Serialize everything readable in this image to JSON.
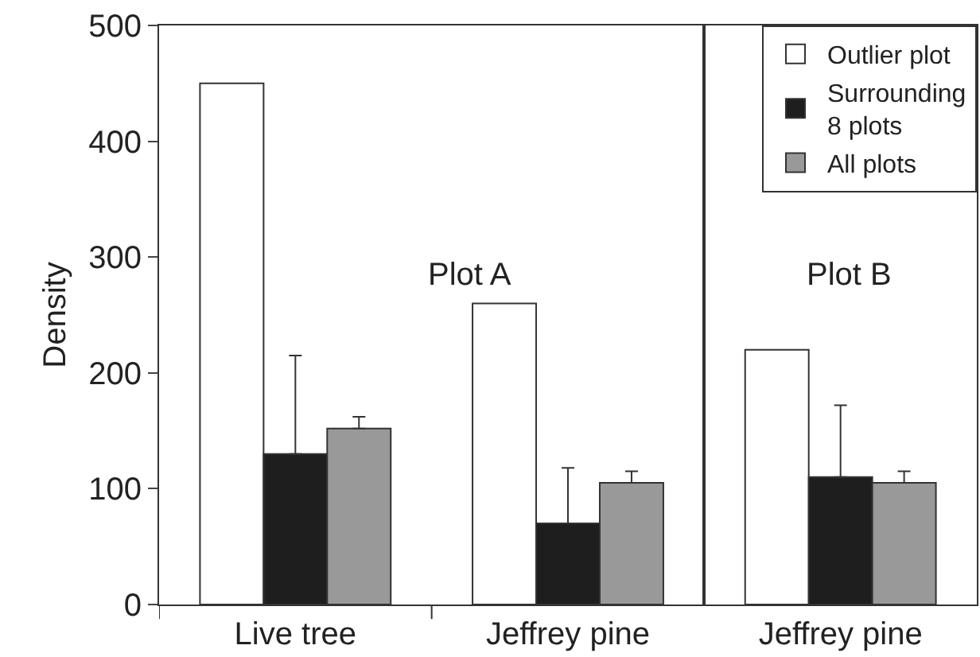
{
  "chart_data": [
    {
      "type": "bar",
      "ylabel": "Density",
      "categories": [
        "Live tree",
        "Jeffrey pine"
      ],
      "ylim": [
        0,
        500
      ],
      "yticks": [
        0,
        100,
        200,
        300,
        400,
        500
      ],
      "grid": false,
      "legend": "top right",
      "annotations": [
        "Plot A"
      ],
      "series": [
        {
          "name": "Outlier plot",
          "color": "#ffffff",
          "values": [
            450,
            260
          ]
        },
        {
          "name": "Surrounding\n8 plots",
          "color": "#1e1e1e",
          "values": [
            130,
            70
          ],
          "errors": [
            [
              130,
              215
            ],
            [
              70,
              118
            ]
          ]
        },
        {
          "name": "All plots",
          "color": "#999999",
          "values": [
            152,
            105
          ],
          "errors": [
            [
              152,
              162
            ],
            [
              105,
              115
            ]
          ]
        }
      ]
    },
    {
      "type": "bar",
      "categories": [
        "Jeffrey pine"
      ],
      "ylim": [
        0,
        500
      ],
      "grid": false,
      "tick_labels": "x",
      "annotations": [
        "Plot B"
      ],
      "series": [
        {
          "color": "#ffffff",
          "values": [
            220
          ]
        },
        {
          "color": "#1e1e1e",
          "values": [
            110
          ],
          "errors": [
            [
              110,
              172
            ]
          ]
        },
        {
          "color": "#999999",
          "values": [
            105
          ],
          "errors": [
            [
              105,
              115
            ]
          ]
        }
      ]
    }
  ]
}
